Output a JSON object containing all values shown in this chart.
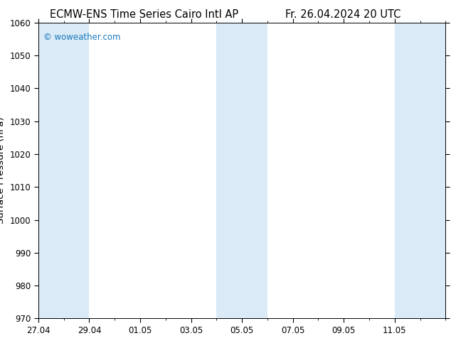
{
  "title_left": "ECMW-ENS Time Series Cairo Intl AP",
  "title_right": "Fr. 26.04.2024 20 UTC",
  "ylabel": "Surface Pressure (hPa)",
  "ylim": [
    970,
    1060
  ],
  "yticks": [
    970,
    980,
    990,
    1000,
    1010,
    1020,
    1030,
    1040,
    1050,
    1060
  ],
  "x_start": "2024-04-27",
  "x_end": "2024-05-13",
  "xtick_dates": [
    "2024-04-27",
    "2024-04-29",
    "2024-05-01",
    "2024-05-03",
    "2024-05-05",
    "2024-05-07",
    "2024-05-09",
    "2024-05-11"
  ],
  "xtick_labels": [
    "27.04",
    "29.04",
    "01.05",
    "03.05",
    "05.05",
    "07.05",
    "09.05",
    "11.05"
  ],
  "weekend_bands": [
    [
      "2024-04-27",
      "2024-04-29"
    ],
    [
      "2024-05-04",
      "2024-05-06"
    ],
    [
      "2024-05-11",
      "2024-05-13"
    ]
  ],
  "band_color": "#daeaf6",
  "background_color": "#ffffff",
  "watermark_text": "© woweather.com",
  "watermark_color": "#1a7bbf",
  "title_color": "#000000",
  "title_fontsize": 10.5,
  "tick_fontsize": 8.5,
  "ylabel_fontsize": 9.5,
  "watermark_fontsize": 8.5,
  "fig_width": 6.34,
  "fig_height": 4.9,
  "fig_dpi": 100
}
